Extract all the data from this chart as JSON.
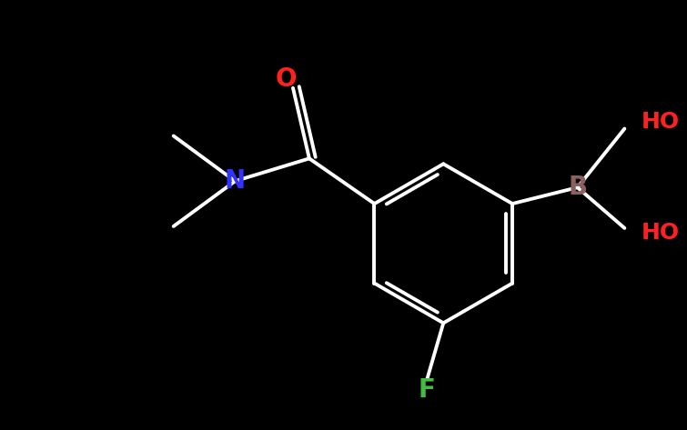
{
  "background_color": "#000000",
  "bond_color": "#ffffff",
  "bond_width": 2.8,
  "fig_width": 7.55,
  "fig_height": 4.73,
  "dpi": 100,
  "labels": {
    "B": {
      "text": "B",
      "color": "#8B6060",
      "fontsize": 20,
      "fontweight": "bold"
    },
    "OH1": {
      "text": "HO",
      "color": "#ff2020",
      "fontsize": 18,
      "fontweight": "bold"
    },
    "OH2": {
      "text": "HO",
      "color": "#ff2020",
      "fontsize": 18,
      "fontweight": "bold"
    },
    "O": {
      "text": "O",
      "color": "#ff2020",
      "fontsize": 20,
      "fontweight": "bold"
    },
    "N": {
      "text": "N",
      "color": "#3333ff",
      "fontsize": 20,
      "fontweight": "bold"
    },
    "F": {
      "text": "F",
      "color": "#44bb44",
      "fontsize": 20,
      "fontweight": "bold"
    }
  }
}
